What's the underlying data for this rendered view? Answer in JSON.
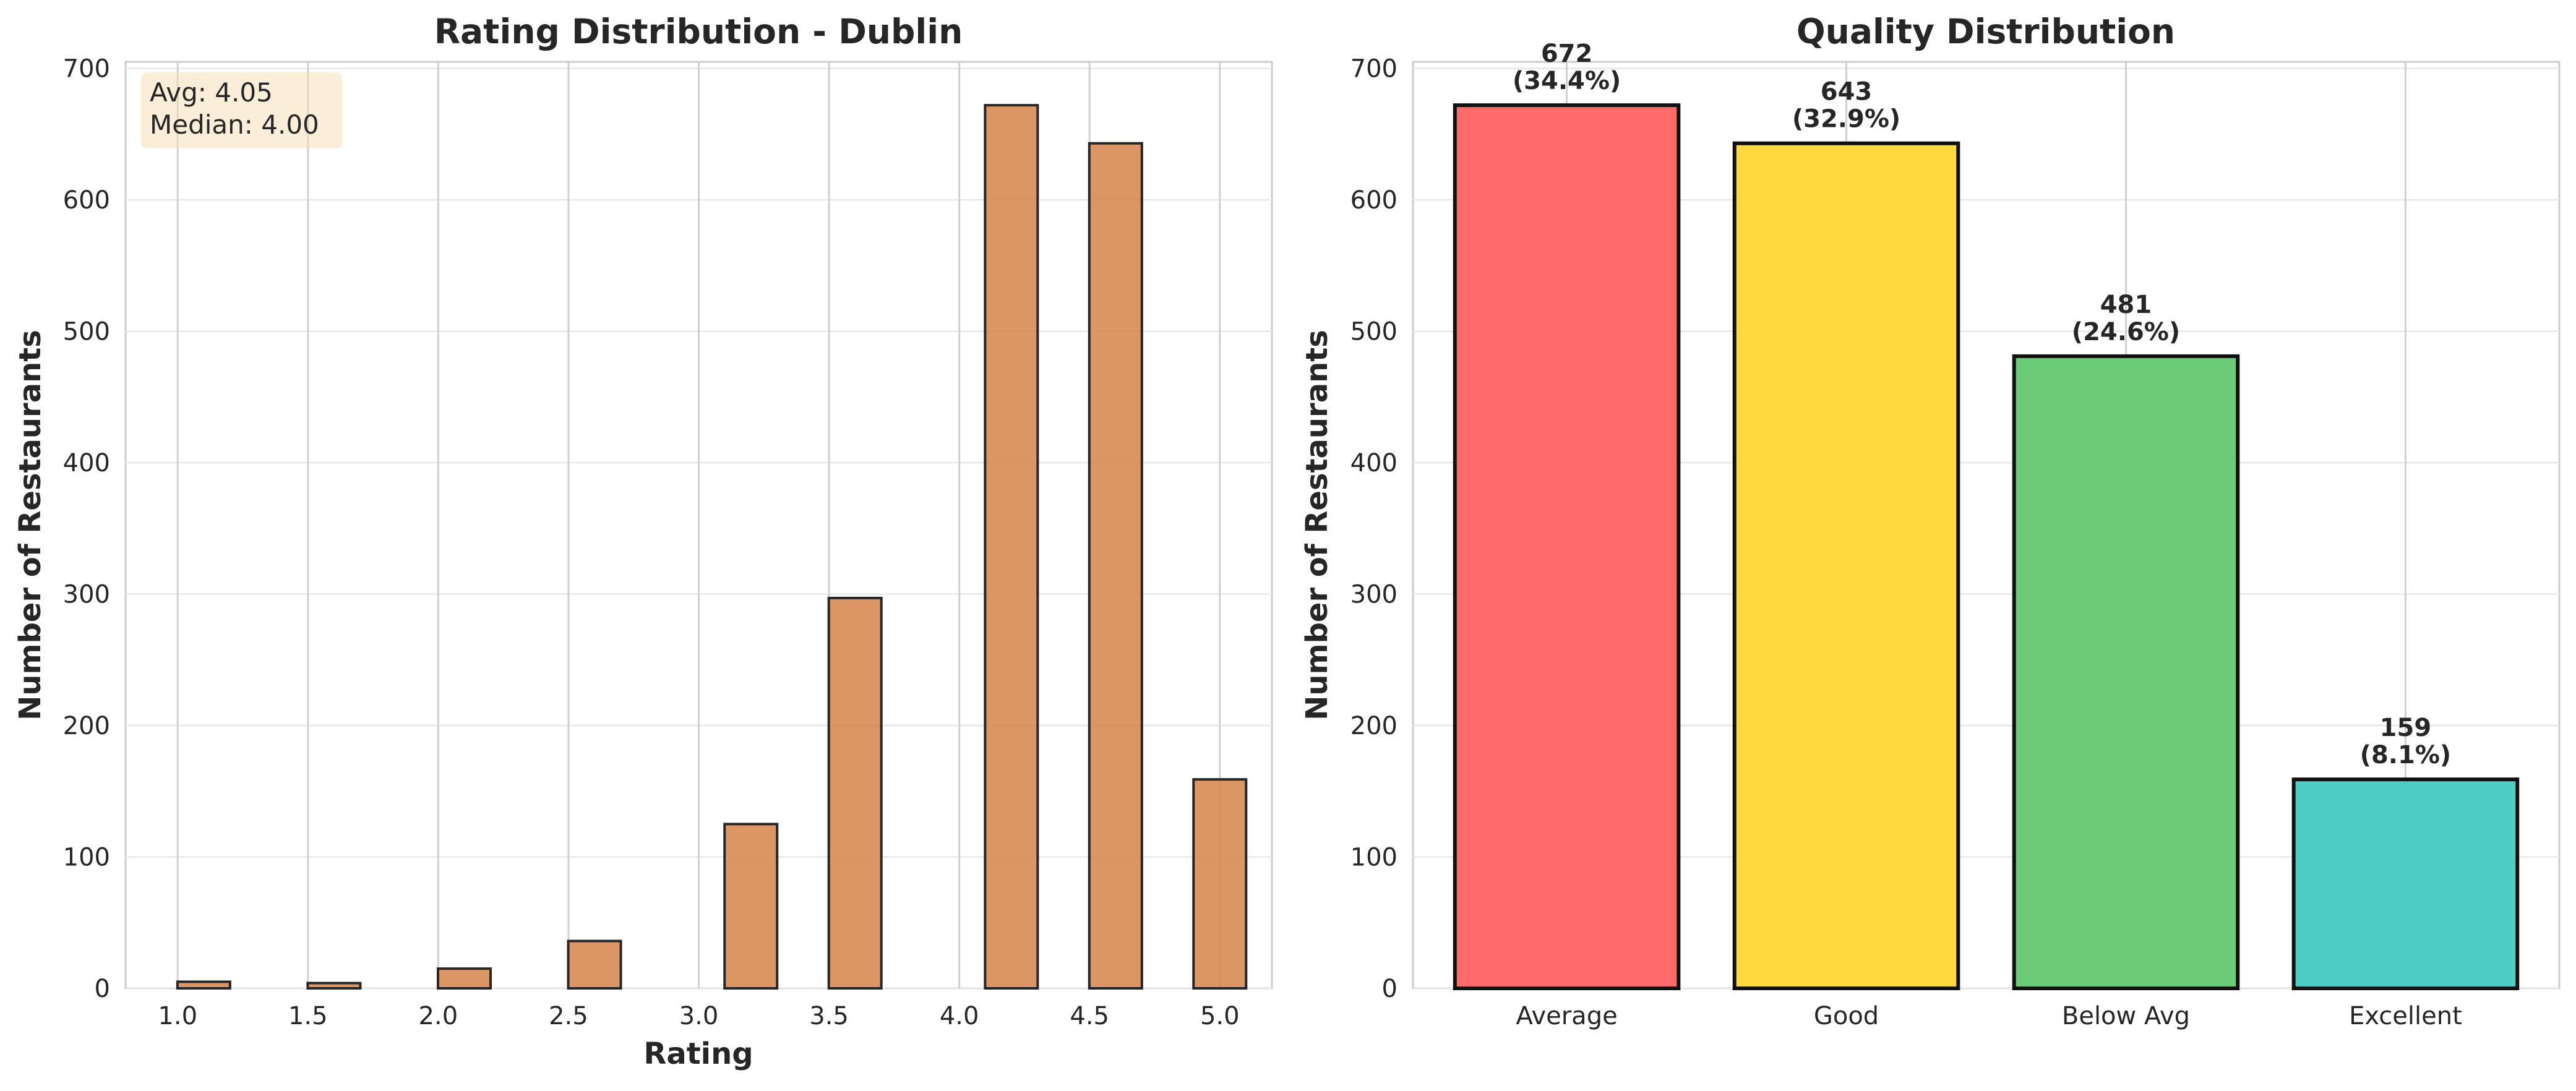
{
  "chart_data": [
    {
      "type": "bar",
      "title": "Rating Distribution - Dublin",
      "xlabel": "Rating",
      "ylabel": "Number of Restaurants",
      "xlim": [
        0.8,
        5.2
      ],
      "ylim": [
        0,
        705
      ],
      "x_ticks": [
        "1.0",
        "1.5",
        "2.0",
        "2.5",
        "3.0",
        "3.5",
        "4.0",
        "4.5",
        "5.0"
      ],
      "y_ticks": [
        0,
        100,
        200,
        300,
        400,
        500,
        600,
        700
      ],
      "grid": "on",
      "color": "#d6824a",
      "bins": [
        {
          "x": 1.1,
          "value": 5
        },
        {
          "x": 1.6,
          "value": 4
        },
        {
          "x": 2.1,
          "value": 15
        },
        {
          "x": 2.6,
          "value": 36
        },
        {
          "x": 3.2,
          "value": 125
        },
        {
          "x": 3.6,
          "value": 297
        },
        {
          "x": 4.2,
          "value": 672
        },
        {
          "x": 4.6,
          "value": 643
        },
        {
          "x": 5.0,
          "value": 159
        }
      ],
      "annotation": {
        "line1": "Avg: 4.05",
        "line2": "Median: 4.00"
      }
    },
    {
      "type": "bar",
      "title": "Quality Distribution",
      "xlabel": "",
      "ylabel": "Number of Restaurants",
      "ylim": [
        0,
        705
      ],
      "y_ticks": [
        0,
        100,
        200,
        300,
        400,
        500,
        600,
        700
      ],
      "grid": "on",
      "categories": [
        "Average",
        "Good",
        "Below Avg",
        "Excellent"
      ],
      "values": [
        672,
        643,
        481,
        159
      ],
      "percent_labels": [
        "(34.4%)",
        "(32.9%)",
        "(24.6%)",
        "(8.1%)"
      ],
      "colors": [
        "#ff6b6b",
        "#ffd93d",
        "#6bcb77",
        "#4ecdc4"
      ]
    }
  ]
}
